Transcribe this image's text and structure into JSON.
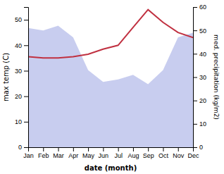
{
  "chart_data": {
    "type": "line",
    "categories": [
      "Jan",
      "Feb",
      "Mar",
      "Apr",
      "May",
      "Jun",
      "Jul",
      "Aug",
      "Sep",
      "Oct",
      "Nov",
      "Dec"
    ],
    "series": [
      {
        "type": "area",
        "axis": "y2",
        "color": "#b0b8e8",
        "values": [
          51,
          50,
          52,
          47,
          33,
          28,
          29,
          31,
          27,
          33,
          47,
          49
        ]
      },
      {
        "type": "line",
        "color": "#c03040",
        "values": [
          35.5,
          35,
          35,
          35.5,
          36.5,
          38.5,
          40,
          47,
          54,
          49,
          45,
          43
        ]
      }
    ],
    "xlabel": "date (month)",
    "ylabel": "max temp (C)",
    "y2label": "med. precipitation (kg/m2)",
    "ylim": [
      0,
      55
    ],
    "yticks": [
      0,
      10,
      20,
      30,
      40,
      50
    ],
    "y2lim": [
      0,
      60
    ],
    "y2ticks": [
      0,
      10,
      20,
      30,
      40,
      50,
      60
    ],
    "grid": false
  }
}
